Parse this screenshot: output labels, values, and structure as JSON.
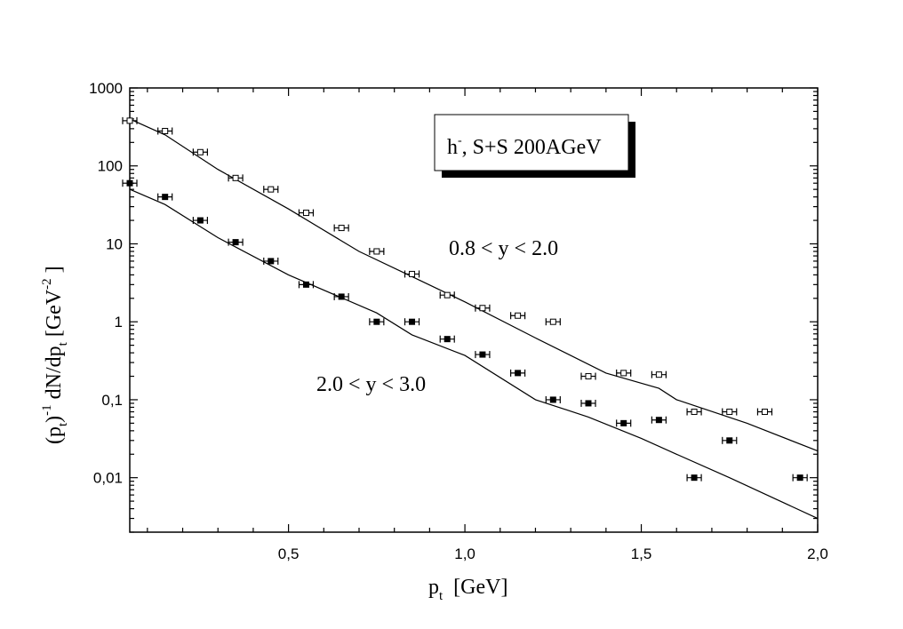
{
  "chart_data": {
    "type": "scatter",
    "y_scale": "log",
    "xlim": [
      0.05,
      2.0
    ],
    "ylim": [
      0.002,
      1000
    ],
    "x_ticks": [
      {
        "value": 0.5,
        "label": "0,5"
      },
      {
        "value": 1.0,
        "label": "1,0"
      },
      {
        "value": 1.5,
        "label": "1,5"
      },
      {
        "value": 2.0,
        "label": "2,0"
      }
    ],
    "y_ticks": [
      {
        "value": 1000,
        "label": "1000"
      },
      {
        "value": 100,
        "label": "100"
      },
      {
        "value": 10,
        "label": "10"
      },
      {
        "value": 1,
        "label": "1"
      },
      {
        "value": 0.1,
        "label": "0,1"
      },
      {
        "value": 0.01,
        "label": "0,01"
      }
    ],
    "xlabel": {
      "main": "p",
      "sub": "t",
      "rest": "[GeV]"
    },
    "ylabel": {
      "a": "(p",
      "a_sub": "t",
      "b": ")",
      "b_sup": "-1",
      "c": " dN/dp",
      "c_sub": "t",
      "d": " [GeV",
      "d_sup": "-2",
      "e": "]"
    },
    "legend_box": {
      "main": "h",
      "sup": "-",
      "rest": ", S+S 200AGeV"
    },
    "annotations": {
      "upper_label": "0.8 < y < 2.0",
      "lower_label": "2.0 < y < 3.0"
    },
    "series": [
      {
        "marker": "open",
        "x": [
          0.05,
          0.15,
          0.25,
          0.35,
          0.45,
          0.55,
          0.65,
          0.75,
          0.85,
          0.95,
          1.05,
          1.15,
          1.25,
          1.35,
          1.45,
          1.55,
          1.65,
          1.75,
          1.85
        ],
        "y": [
          380,
          280,
          150,
          70,
          50,
          25,
          16,
          8,
          4.1,
          2.2,
          1.5,
          1.2,
          1.0,
          0.2,
          0.22,
          0.21,
          0.07,
          0.07,
          0.07
        ]
      },
      {
        "marker": "filled",
        "x": [
          0.05,
          0.15,
          0.25,
          0.35,
          0.45,
          0.55,
          0.65,
          0.75,
          0.85,
          0.95,
          1.05,
          1.15,
          1.25,
          1.35,
          1.45,
          1.55,
          1.65,
          1.75,
          1.95
        ],
        "y": [
          60,
          40,
          20,
          10.5,
          6.0,
          3.0,
          2.1,
          1.0,
          1.0,
          0.6,
          0.38,
          0.22,
          0.1,
          0.09,
          0.05,
          0.055,
          0.01,
          0.03,
          0.01
        ]
      }
    ],
    "curves": [
      {
        "x": [
          0.05,
          0.15,
          0.3,
          0.5,
          0.7,
          0.85,
          1.0,
          1.2,
          1.4,
          1.55,
          1.6,
          1.8,
          2.0
        ],
        "y": [
          400,
          250,
          90,
          28,
          8,
          3.8,
          1.8,
          0.62,
          0.22,
          0.14,
          0.1,
          0.05,
          0.022
        ]
      },
      {
        "x": [
          0.05,
          0.15,
          0.3,
          0.5,
          0.75,
          0.85,
          1.0,
          1.2,
          1.35,
          1.5,
          1.6,
          1.75,
          2.0
        ],
        "y": [
          50,
          32,
          12,
          4,
          1.3,
          0.68,
          0.37,
          0.1,
          0.06,
          0.032,
          0.02,
          0.01,
          0.003
        ]
      }
    ]
  }
}
